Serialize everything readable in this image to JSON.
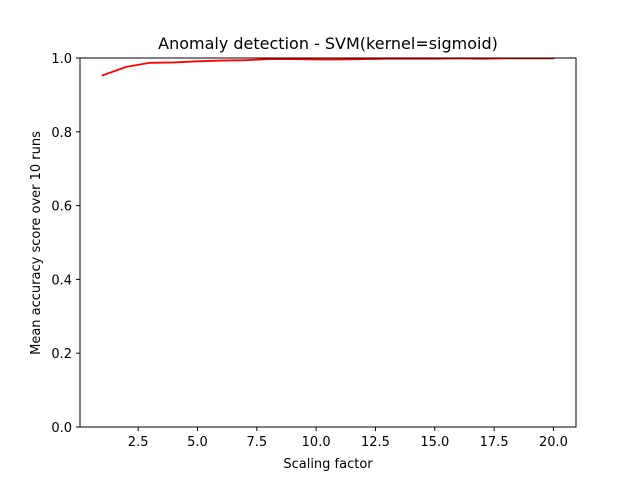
{
  "chart_data": {
    "type": "line",
    "title": "Anomaly detection - SVM(kernel=sigmoid)",
    "xlabel": "Scaling factor",
    "ylabel": "Mean accuracy score over 10 runs",
    "xlim": [
      0.05,
      20.95
    ],
    "ylim": [
      0.0,
      1.0
    ],
    "xticks": [
      2.5,
      5.0,
      7.5,
      10.0,
      12.5,
      15.0,
      17.5,
      20.0
    ],
    "xtick_labels": [
      "2.5",
      "5.0",
      "7.5",
      "10.0",
      "12.5",
      "15.0",
      "17.5",
      "20.0"
    ],
    "yticks": [
      0.0,
      0.2,
      0.4,
      0.6,
      0.8,
      1.0
    ],
    "ytick_labels": [
      "0.0",
      "0.2",
      "0.4",
      "0.6",
      "0.8",
      "1.0"
    ],
    "grid": false,
    "series": [
      {
        "color": "#ff0000",
        "x": [
          1,
          2,
          3,
          4,
          5,
          6,
          7,
          8,
          9,
          10,
          11,
          12,
          13,
          14,
          15,
          16,
          17,
          18,
          19,
          20
        ],
        "y": [
          0.953,
          0.976,
          0.987,
          0.988,
          0.991,
          0.993,
          0.994,
          0.997,
          0.997,
          0.996,
          0.996,
          0.997,
          0.998,
          0.998,
          0.998,
          0.999,
          0.998,
          0.999,
          0.999,
          0.999
        ]
      }
    ]
  }
}
